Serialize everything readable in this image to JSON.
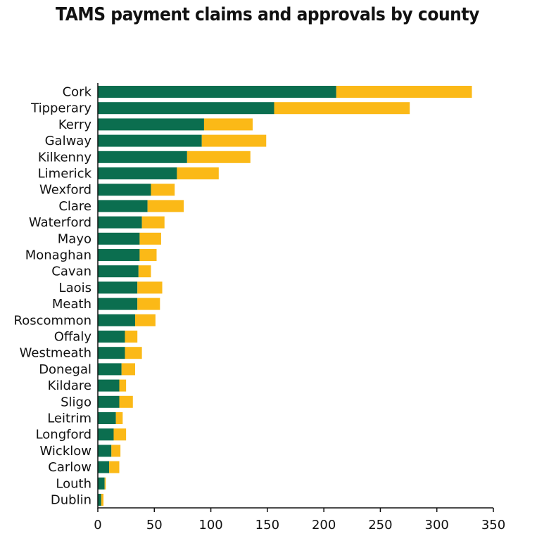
{
  "chart_data": {
    "type": "bar",
    "orientation": "horizontal",
    "stacked": true,
    "title": "TAMS payment claims and approvals by county",
    "categories": [
      "Cork",
      "Tipperary",
      "Kerry",
      "Galway",
      "Kilkenny",
      "Limerick",
      "Wexford",
      "Clare",
      "Waterford",
      "Mayo",
      "Monaghan",
      "Cavan",
      "Laois",
      "Meath",
      "Roscommon",
      "Offaly",
      "Westmeath",
      "Donegal",
      "Kildare",
      "Sligo",
      "Leitrim",
      "Longford",
      "Wicklow",
      "Carlow",
      "Louth",
      "Dublin"
    ],
    "series": [
      {
        "values": [
          211,
          156,
          94,
          92,
          79,
          70,
          47,
          44,
          39,
          37,
          37,
          36,
          35,
          35,
          33,
          24,
          24,
          21,
          19,
          19,
          16,
          14,
          12,
          10,
          6,
          3
        ],
        "color": "#0b6e4f"
      },
      {
        "values": [
          120,
          120,
          43,
          57,
          56,
          37,
          21,
          32,
          20,
          19,
          15,
          11,
          22,
          20,
          18,
          11,
          15,
          12,
          6,
          12,
          6,
          11,
          8,
          9,
          1,
          2
        ],
        "color": "#fbb917"
      }
    ],
    "xlim": [
      0,
      350
    ],
    "xticks": [
      "0",
      "50",
      "100",
      "150",
      "200",
      "250",
      "300",
      "350"
    ],
    "xlabel": "",
    "ylabel": "",
    "grid": false,
    "legend": "none"
  }
}
